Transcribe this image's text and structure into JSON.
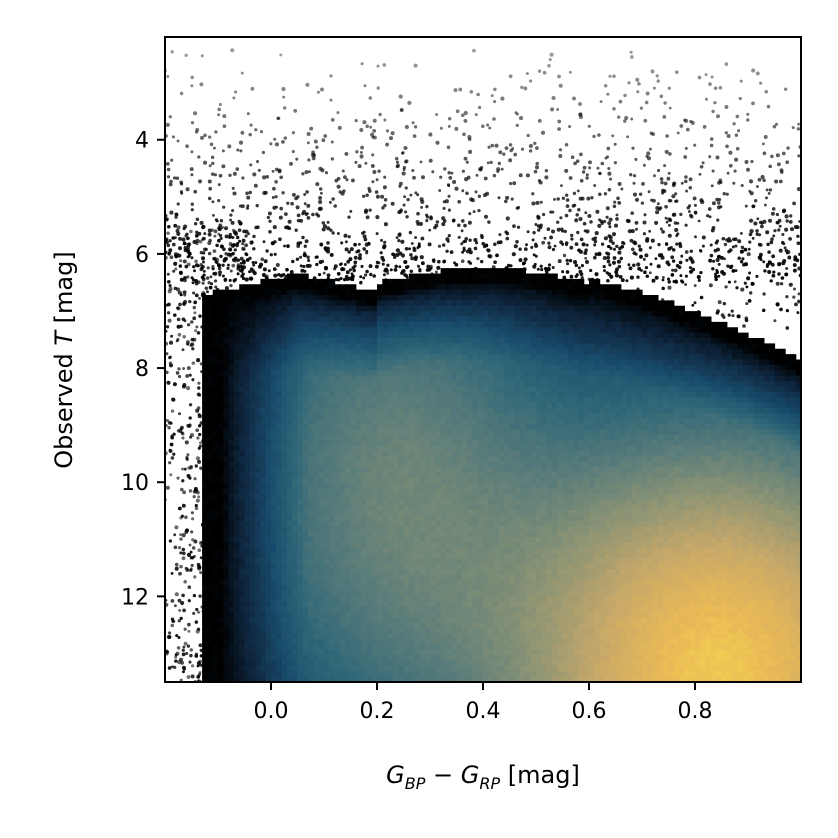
{
  "chart_data": {
    "type": "heatmap",
    "title": "",
    "xlabel": {
      "main_left": "G",
      "sub_left": "BP",
      "minus": " − ",
      "main_right": "G",
      "sub_right": "RP",
      "unit": " [mag]"
    },
    "ylabel": {
      "prefix": "Observed ",
      "var": "T",
      "unit": " [mag]"
    },
    "xlim": [
      -0.2,
      1.0
    ],
    "ylim": [
      13.5,
      2.2
    ],
    "y_inverted": true,
    "xticks": [
      0.0,
      0.2,
      0.4,
      0.6,
      0.8
    ],
    "xtick_labels": [
      "0.0",
      "0.2",
      "0.4",
      "0.6",
      "0.8"
    ],
    "yticks": [
      4,
      6,
      8,
      10,
      12
    ],
    "ytick_labels": [
      "4",
      "6",
      "8",
      "10",
      "12"
    ],
    "grid": false,
    "legend": "none",
    "colormap": [
      "#000000",
      "#0f2740",
      "#184b6b",
      "#2e6678",
      "#5b7d7a",
      "#8f9574",
      "#c4a76a",
      "#e9b957",
      "#fde74c"
    ],
    "density_peak": {
      "x": 0.85,
      "y": 13.3
    },
    "scatter_color": "#000000",
    "scatter_distribution": {
      "outlier_band_y": [
        2.2,
        6.5
      ],
      "blue_edge_x": [
        -0.2,
        -0.05
      ]
    }
  }
}
